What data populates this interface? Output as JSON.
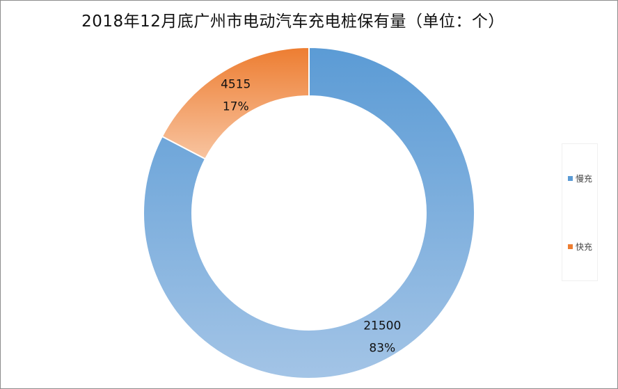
{
  "title": "2018年12月底广州市电动汽车充电桩保有量（单位：个）",
  "chart_data": {
    "type": "pie",
    "subtype": "doughnut",
    "title": "2018年12月底广州市电动汽车充电桩保有量（单位：个）",
    "categories": [
      "慢充",
      "快充"
    ],
    "values": [
      21500,
      4515
    ],
    "percent_labels": [
      "83%",
      "17%"
    ],
    "value_labels": [
      "21500",
      "4515"
    ],
    "legend": "right",
    "colors": {
      "慢充": {
        "top": "#5b9bd5",
        "bottom": "#a3c4e6"
      },
      "快充": {
        "top": "#ed7d31",
        "bottom": "#f8c4a0"
      }
    }
  }
}
